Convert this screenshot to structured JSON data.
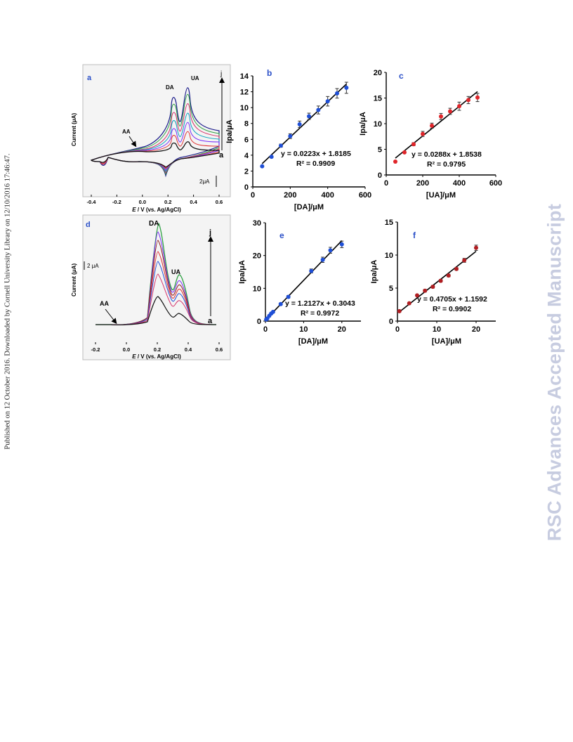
{
  "page": {
    "sidebar_text": "Published on 12 October 2016. Downloaded by Cornell University Library on 12/10/2016 17:46:47.",
    "watermark": "RSC Advances Accepted Manuscript"
  },
  "colors": {
    "blue_marker": "#1f4fd6",
    "red_marker": "#e0252a",
    "dark_red_marker": "#b01e22",
    "label_blue": "#2b50c8"
  },
  "panels": {
    "a": {
      "letter": "a",
      "peak_da": "DA",
      "peak_ua": "UA",
      "peak_aa": "AA",
      "trace_start": "a",
      "trace_end": "j",
      "scale_bar": "2μA",
      "ylabel": "Current (μA)",
      "xlabel_italic": "E",
      "xlabel_rest": " / V (vs. Ag/AgCl)",
      "xticks": [
        "-0.4",
        "-0.2",
        "0.0",
        "0.2",
        "0.4",
        "0.6"
      ]
    },
    "d": {
      "letter": "d",
      "peak_da": "DA",
      "peak_ua": "UA",
      "peak_aa": "AA",
      "trace_start": "a",
      "trace_end": "j",
      "scale_bar": "2 μA",
      "ylabel": "Current (μA)",
      "xlabel_italic": "E",
      "xlabel_rest": " / V (vs. Ag/AgCl)",
      "xticks": [
        "-0.2",
        "0.0",
        "0.2",
        "0.4",
        "0.6"
      ]
    }
  },
  "chart_data": [
    {
      "panel": "b",
      "type": "scatter",
      "xlabel": "[DA]/μM",
      "ylabel": "Ipa/μA",
      "xlim": [
        0,
        600
      ],
      "ylim": [
        0,
        14
      ],
      "xticks": [
        "0",
        "200",
        "400",
        "600"
      ],
      "yticks": [
        "0",
        "2",
        "4",
        "6",
        "8",
        "10",
        "12",
        "14"
      ],
      "x": [
        50,
        100,
        150,
        200,
        250,
        300,
        350,
        400,
        450,
        500
      ],
      "y": [
        2.6,
        3.8,
        5.2,
        6.4,
        7.9,
        8.9,
        9.7,
        10.8,
        11.8,
        12.5
      ],
      "errors": [
        0,
        0,
        0.2,
        0.3,
        0.4,
        0.4,
        0.5,
        0.6,
        0.6,
        0.7
      ],
      "marker_color": "#1f4fd6",
      "fit": {
        "slope": 0.0223,
        "intercept": 1.8185,
        "x_range": [
          50,
          500
        ]
      },
      "equation": "y = 0.0223x + 1.8185",
      "r2": "R² = 0.9909"
    },
    {
      "panel": "c",
      "type": "scatter",
      "xlabel": "[UA]/μM",
      "ylabel": "Ipa/μA",
      "xlim": [
        0,
        600
      ],
      "ylim": [
        0,
        20
      ],
      "xticks": [
        "0",
        "200",
        "400",
        "600"
      ],
      "yticks": [
        "0",
        "5",
        "10",
        "15",
        "20"
      ],
      "x": [
        50,
        100,
        150,
        200,
        250,
        300,
        350,
        400,
        450,
        500
      ],
      "y": [
        2.6,
        4.4,
        6.0,
        8.0,
        9.6,
        11.4,
        12.4,
        13.4,
        14.6,
        15.1
      ],
      "errors": [
        0,
        0,
        0.3,
        0.5,
        0.5,
        0.6,
        0.6,
        0.8,
        0.7,
        0.8
      ],
      "marker_color": "#e0252a",
      "fit": {
        "slope": 0.0288,
        "intercept": 1.8538,
        "x_range": [
          50,
          500
        ]
      },
      "equation": "y = 0.0288x + 1.8538",
      "r2": "R² = 0.9795"
    },
    {
      "panel": "e",
      "type": "scatter",
      "xlabel": "[DA]/μM",
      "ylabel": "Ipa/μA",
      "xlim": [
        0,
        25
      ],
      "ylim": [
        0,
        30
      ],
      "xticks": [
        "0",
        "10",
        "20"
      ],
      "yticks": [
        "0",
        "10",
        "20",
        "30"
      ],
      "x": [
        0.2,
        0.5,
        1,
        1.5,
        2,
        4,
        6,
        12,
        15,
        17,
        20
      ],
      "y": [
        0.5,
        0.8,
        1.6,
        2.3,
        2.8,
        5.2,
        7.4,
        15.3,
        18.7,
        21.6,
        23.4
      ],
      "errors": [
        0,
        0,
        0,
        0,
        0,
        0.3,
        0.4,
        0.6,
        0.8,
        0.9,
        1.0
      ],
      "marker_color": "#1f4fd6",
      "fit": {
        "slope": 1.2127,
        "intercept": 0.3043,
        "x_range": [
          0,
          20
        ]
      },
      "equation": "y = 1.2127x + 0.3043",
      "r2": "R² = 0.9972"
    },
    {
      "panel": "f",
      "type": "scatter",
      "xlabel": "[UA]/μM",
      "ylabel": "Ipa/μA",
      "xlim": [
        0,
        25
      ],
      "ylim": [
        0,
        15
      ],
      "xticks": [
        "0",
        "10",
        "20"
      ],
      "yticks": [
        "0",
        "5",
        "10",
        "15"
      ],
      "x": [
        0.5,
        3,
        5,
        7,
        9,
        11,
        13,
        15,
        17,
        20
      ],
      "y": [
        1.5,
        2.7,
        3.9,
        4.6,
        5.2,
        6.1,
        6.9,
        7.9,
        9.2,
        11.1
      ],
      "errors": [
        0,
        0,
        0,
        0.2,
        0.2,
        0.2,
        0.2,
        0.2,
        0.3,
        0.4
      ],
      "marker_color": "#b01e22",
      "fit": {
        "slope": 0.4705,
        "intercept": 1.1592,
        "x_range": [
          0.5,
          20
        ]
      },
      "equation": "y = 0.4705x + 1.1592",
      "r2": "R² = 0.9902"
    }
  ]
}
